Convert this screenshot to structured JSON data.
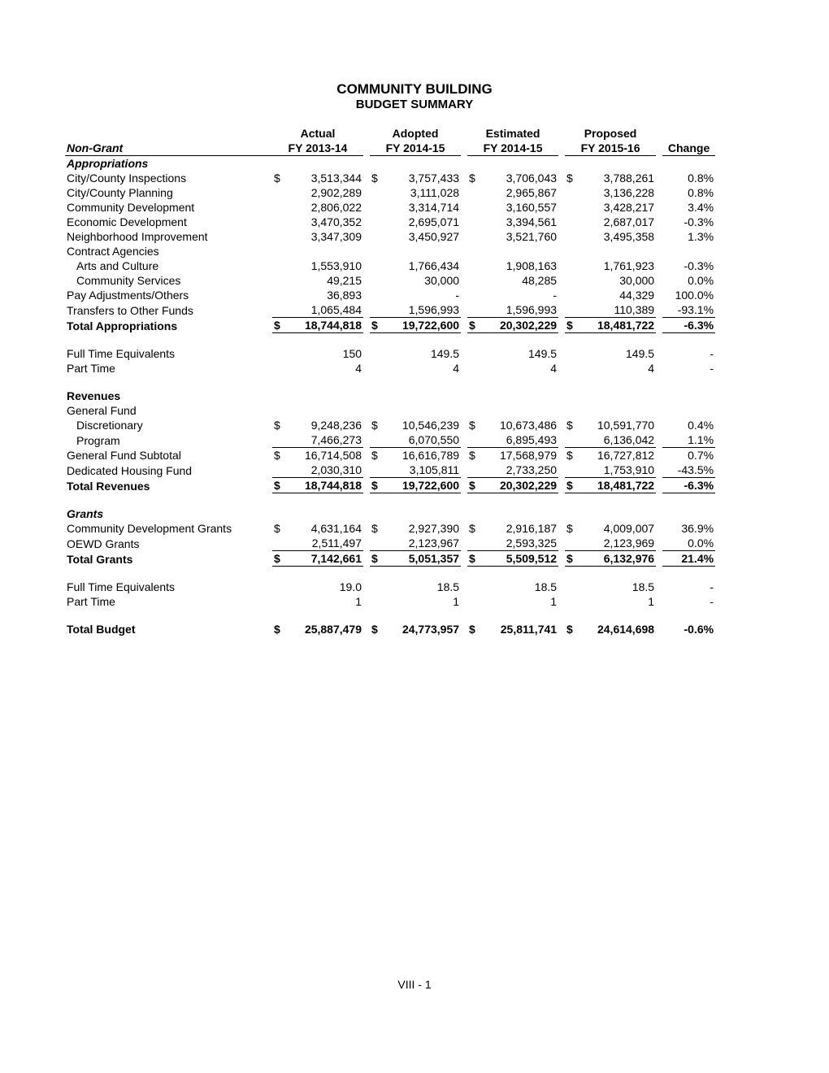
{
  "title": "COMMUNITY BUILDING",
  "subtitle": "BUDGET SUMMARY",
  "footer": "VIII - 1",
  "headers": {
    "top": [
      "Actual",
      "Adopted",
      "Estimated",
      "Proposed"
    ],
    "bot_left": "Non-Grant",
    "bot": [
      "FY 2013-14",
      "FY 2014-15",
      "FY 2014-15",
      "FY 2015-16"
    ],
    "change": "Change"
  },
  "sections": {
    "appropriations_label": "Appropriations",
    "contract_agencies_label": "Contract Agencies",
    "revenues_label": "Revenues",
    "general_fund_label": "General Fund",
    "grants_label": "Grants"
  },
  "rows": {
    "city_county_inspections": {
      "label": "City/County Inspections",
      "d": [
        "$",
        "$",
        "$",
        "$"
      ],
      "v": [
        "3,513,344",
        "3,757,433",
        "3,706,043",
        "3,788,261"
      ],
      "chg": "0.8%"
    },
    "city_county_planning": {
      "label": "City/County Planning",
      "d": [
        "",
        "",
        "",
        ""
      ],
      "v": [
        "2,902,289",
        "3,111,028",
        "2,965,867",
        "3,136,228"
      ],
      "chg": "0.8%"
    },
    "community_development": {
      "label": "Community Development",
      "d": [
        "",
        "",
        "",
        ""
      ],
      "v": [
        "2,806,022",
        "3,314,714",
        "3,160,557",
        "3,428,217"
      ],
      "chg": "3.4%"
    },
    "economic_development": {
      "label": "Economic Development",
      "d": [
        "",
        "",
        "",
        ""
      ],
      "v": [
        "3,470,352",
        "2,695,071",
        "3,394,561",
        "2,687,017"
      ],
      "chg": "-0.3%"
    },
    "neighborhood_improvement": {
      "label": "Neighborhood Improvement",
      "d": [
        "",
        "",
        "",
        ""
      ],
      "v": [
        "3,347,309",
        "3,450,927",
        "3,521,760",
        "3,495,358"
      ],
      "chg": "1.3%"
    },
    "arts_culture": {
      "label": "Arts and Culture",
      "d": [
        "",
        "",
        "",
        ""
      ],
      "v": [
        "1,553,910",
        "1,766,434",
        "1,908,163",
        "1,761,923"
      ],
      "chg": "-0.3%"
    },
    "community_services": {
      "label": "Community Services",
      "d": [
        "",
        "",
        "",
        ""
      ],
      "v": [
        "49,215",
        "30,000",
        "48,285",
        "30,000"
      ],
      "chg": "0.0%"
    },
    "pay_adjustments": {
      "label": "Pay Adjustments/Others",
      "d": [
        "",
        "",
        "",
        ""
      ],
      "v": [
        "36,893",
        "-",
        "-",
        "44,329"
      ],
      "chg": "100.0%"
    },
    "transfers": {
      "label": "Transfers to Other Funds",
      "d": [
        "",
        "",
        "",
        ""
      ],
      "v": [
        "1,065,484",
        "1,596,993",
        "1,596,993",
        "110,389"
      ],
      "chg": "-93.1%"
    },
    "total_appropriations": {
      "label": "Total Appropriations",
      "d": [
        "$",
        "$",
        "$",
        "$"
      ],
      "v": [
        "18,744,818",
        "19,722,600",
        "20,302,229",
        "18,481,722"
      ],
      "chg": "-6.3%"
    },
    "fte1": {
      "label": "Full Time Equivalents",
      "d": [
        "",
        "",
        "",
        ""
      ],
      "v": [
        "150",
        "149.5",
        "149.5",
        "149.5"
      ],
      "chg": "-"
    },
    "pt1": {
      "label": "Part Time",
      "d": [
        "",
        "",
        "",
        ""
      ],
      "v": [
        "4",
        "4",
        "4",
        "4"
      ],
      "chg": "-"
    },
    "discretionary": {
      "label": "Discretionary",
      "d": [
        "$",
        "$",
        "$",
        "$"
      ],
      "v": [
        "9,248,236",
        "10,546,239",
        "10,673,486",
        "10,591,770"
      ],
      "chg": "0.4%"
    },
    "program": {
      "label": "Program",
      "d": [
        "",
        "",
        "",
        ""
      ],
      "v": [
        "7,466,273",
        "6,070,550",
        "6,895,493",
        "6,136,042"
      ],
      "chg": "1.1%"
    },
    "gf_subtotal": {
      "label": "General Fund Subtotal",
      "d": [
        "$",
        "$",
        "$",
        "$"
      ],
      "v": [
        "16,714,508",
        "16,616,789",
        "17,568,979",
        "16,727,812"
      ],
      "chg": "0.7%"
    },
    "dedicated_housing": {
      "label": "Dedicated Housing Fund",
      "d": [
        "",
        "",
        "",
        ""
      ],
      "v": [
        "2,030,310",
        "3,105,811",
        "2,733,250",
        "1,753,910"
      ],
      "chg": "-43.5%"
    },
    "total_revenues": {
      "label": "Total Revenues",
      "d": [
        "$",
        "$",
        "$",
        "$"
      ],
      "v": [
        "18,744,818",
        "19,722,600",
        "20,302,229",
        "18,481,722"
      ],
      "chg": "-6.3%"
    },
    "cd_grants": {
      "label": "Community Development Grants",
      "d": [
        "$",
        "$",
        "$",
        "$"
      ],
      "v": [
        "4,631,164",
        "2,927,390",
        "2,916,187",
        "4,009,007"
      ],
      "chg": "36.9%"
    },
    "oewd_grants": {
      "label": "OEWD Grants",
      "d": [
        "",
        "",
        "",
        ""
      ],
      "v": [
        "2,511,497",
        "2,123,967",
        "2,593,325",
        "2,123,969"
      ],
      "chg": "0.0%"
    },
    "total_grants": {
      "label": "Total Grants",
      "d": [
        "$",
        "$",
        "$",
        "$"
      ],
      "v": [
        "7,142,661",
        "5,051,357",
        "5,509,512",
        "6,132,976"
      ],
      "chg": "21.4%"
    },
    "fte2": {
      "label": "Full Time Equivalents",
      "d": [
        "",
        "",
        "",
        ""
      ],
      "v": [
        "19.0",
        "18.5",
        "18.5",
        "18.5"
      ],
      "chg": "-"
    },
    "pt2": {
      "label": "Part Time",
      "d": [
        "",
        "",
        "",
        ""
      ],
      "v": [
        "1",
        "1",
        "1",
        "1"
      ],
      "chg": "-"
    },
    "total_budget": {
      "label": "Total Budget",
      "d": [
        "$",
        "$",
        "$",
        "$"
      ],
      "v": [
        "25,887,479",
        "24,773,957",
        "25,811,741",
        "24,614,698"
      ],
      "chg": "-0.6%"
    }
  }
}
